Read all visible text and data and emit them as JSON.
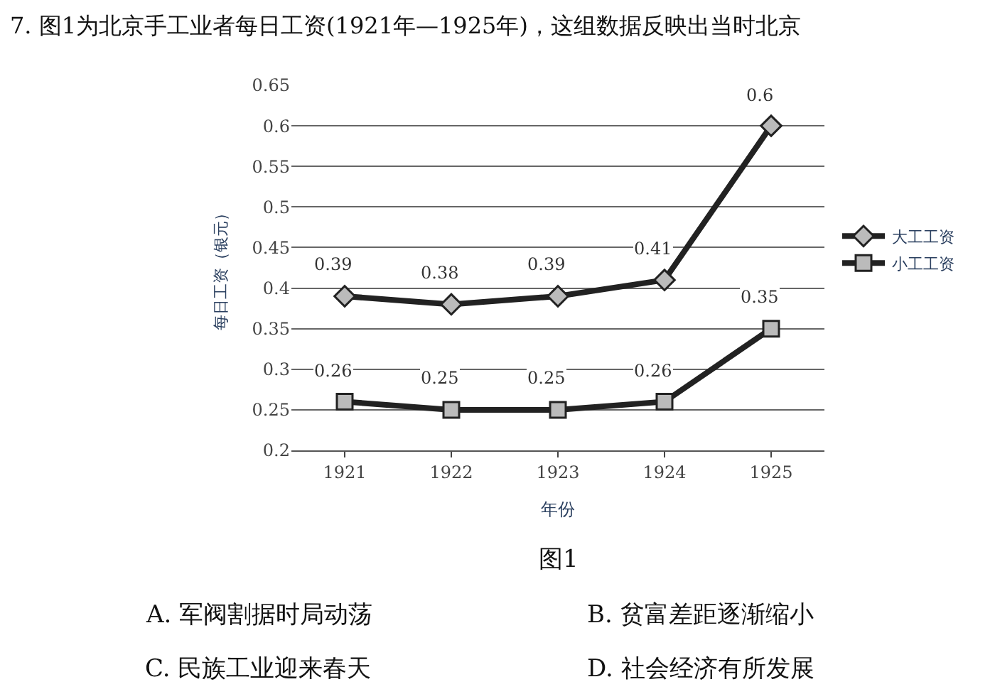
{
  "chart_data": {
    "type": "line",
    "title": "7. 图1为北京手工业者每日工资(1921年—1925年)，这组数据反映出当时北京",
    "xlabel": "年份",
    "ylabel": "每日工资（银元）",
    "categories": [
      "1921",
      "1922",
      "1923",
      "1924",
      "1925"
    ],
    "series": [
      {
        "name": "大工工资",
        "color": "#222222",
        "marker": "diamond",
        "values": [
          0.39,
          0.38,
          0.39,
          0.41,
          0.6
        ]
      },
      {
        "name": "小工工资",
        "color": "#222222",
        "marker": "square",
        "values": [
          0.26,
          0.25,
          0.25,
          0.26,
          0.35
        ]
      }
    ],
    "ylim": [
      0.2,
      0.65
    ],
    "yticks": [
      0.2,
      0.25,
      0.3,
      0.35,
      0.4,
      0.45,
      0.5,
      0.55,
      0.6,
      0.65
    ],
    "grid": "y",
    "legend": "right",
    "data_labels": true,
    "annotations": [
      "图1",
      "A. 军阀割据时局动荡",
      "B. 贫富差距逐渐缩小",
      "C. 民族工业迎来春天",
      "D. 社会经济有所发展"
    ]
  }
}
